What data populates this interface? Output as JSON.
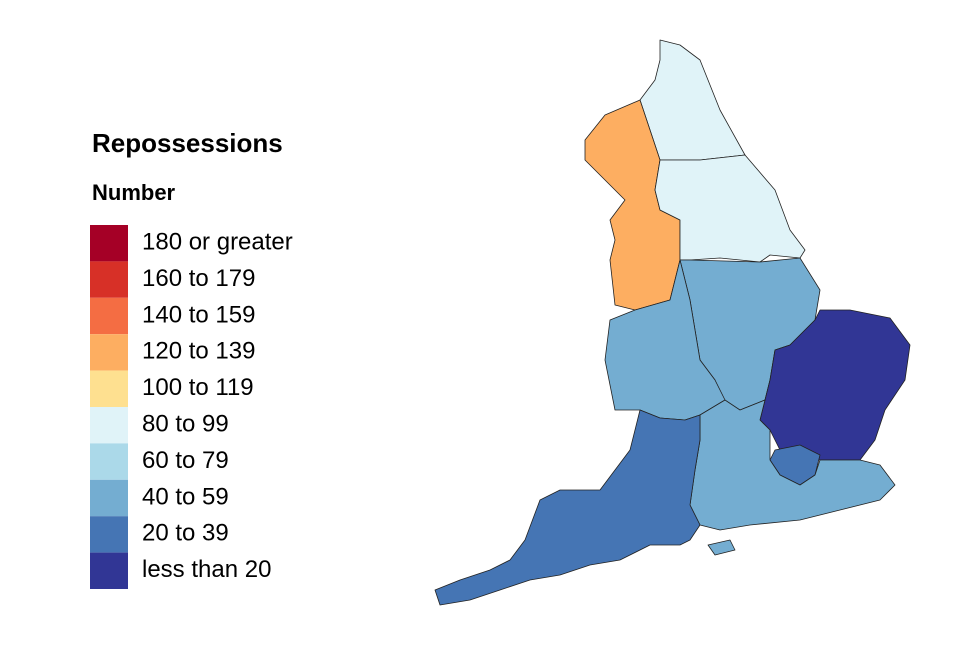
{
  "legend": {
    "title": "Repossessions",
    "subtitle": "Number",
    "items": [
      {
        "label": "180 or greater",
        "color": "#a50026"
      },
      {
        "label": "160 to 179",
        "color": "#d73027"
      },
      {
        "label": "140 to 159",
        "color": "#f46d43"
      },
      {
        "label": "120 to 139",
        "color": "#fdae61"
      },
      {
        "label": "100 to 119",
        "color": "#fee090"
      },
      {
        "label": "80 to 99",
        "color": "#e0f3f8"
      },
      {
        "label": "60 to 79",
        "color": "#abd9e9"
      },
      {
        "label": "40 to 59",
        "color": "#74add1"
      },
      {
        "label": "20 to 39",
        "color": "#4575b4"
      },
      {
        "label": "less than 20",
        "color": "#313695"
      }
    ]
  },
  "map": {
    "regions": [
      {
        "color": "#e0f3f8"
      },
      {
        "color": "#fdae61"
      },
      {
        "color": "#e0f3f8"
      },
      {
        "color": "#74add1"
      },
      {
        "color": "#74add1"
      },
      {
        "color": "#313695"
      },
      {
        "color": "#4575b4"
      },
      {
        "color": "#74add1"
      },
      {
        "color": "#4575b4"
      },
      {
        "color": "#74add1"
      }
    ]
  }
}
